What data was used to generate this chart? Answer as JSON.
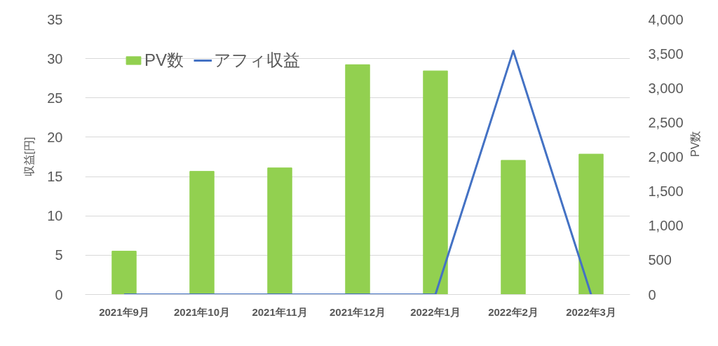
{
  "chart_data": {
    "type": "bar",
    "categories": [
      "2021年9月",
      "2021年10月",
      "2021年11月",
      "2021年12月",
      "2022年1月",
      "2022年2月",
      "2022年3月"
    ],
    "series": [
      {
        "name": "PV数",
        "axis": "y2",
        "color": "#92d050",
        "values": [
          630,
          1790,
          1840,
          3340,
          3250,
          1950,
          2040
        ]
      },
      {
        "name": "アフィ収益",
        "type": "line",
        "color": "#4472c4",
        "values": [
          0,
          0,
          0,
          0,
          0,
          31,
          0
        ]
      }
    ],
    "ylabel": "収益[円]",
    "y2label": "PV数",
    "ylim": [
      0,
      35
    ],
    "yticks": [
      0,
      5,
      10,
      15,
      20,
      25,
      30,
      35
    ],
    "y2lim": [
      0,
      4000
    ],
    "y2ticks": [
      0,
      500,
      {
        "value": 1000,
        "label": "1,000"
      },
      {
        "value": 1500,
        "label": "1,500"
      },
      {
        "value": 2000,
        "label": "2,000"
      },
      {
        "value": 2500,
        "label": "2,500"
      },
      {
        "value": 3000,
        "label": "3,000"
      },
      {
        "value": 3500,
        "label": "3,500"
      },
      {
        "value": 4000,
        "label": "4,000"
      }
    ],
    "grid": "y",
    "legend": "top left"
  }
}
